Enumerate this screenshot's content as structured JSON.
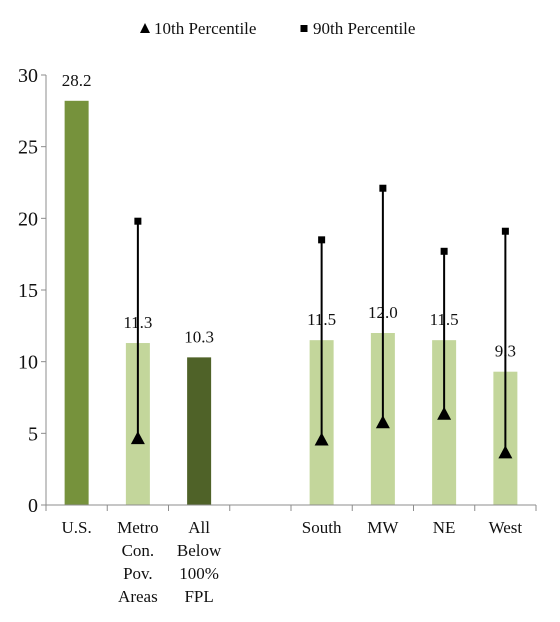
{
  "chart_data": {
    "type": "bar",
    "title": "",
    "xlabel": "",
    "ylabel": "",
    "ylim": [
      0,
      30
    ],
    "yticks": [
      0,
      5,
      10,
      15,
      20,
      25,
      30
    ],
    "grid": false,
    "legend_position": "top",
    "categories": [
      {
        "label_lines": [
          "U.S."
        ],
        "value": 28.2,
        "value_label": "28.2",
        "color": "#76923c",
        "p10": null,
        "p90": null
      },
      {
        "label_lines": [
          "Metro",
          "Con.",
          "Pov.",
          "Areas"
        ],
        "value": 11.3,
        "value_label": "11.3",
        "color": "#c3d69b",
        "p10": 4.6,
        "p90": 19.8
      },
      {
        "label_lines": [
          "All",
          "Below",
          "100%",
          "FPL"
        ],
        "value": 10.3,
        "value_label": "10.3",
        "color": "#4f6228",
        "p10": null,
        "p90": null
      },
      {
        "label_lines": [
          ""
        ],
        "value": null,
        "value_label": "",
        "color": "",
        "p10": null,
        "p90": null
      },
      {
        "label_lines": [
          "South"
        ],
        "value": 11.5,
        "value_label": "11.5",
        "color": "#c3d69b",
        "p10": 4.5,
        "p90": 18.5
      },
      {
        "label_lines": [
          "MW"
        ],
        "value": 12.0,
        "value_label": "12.0",
        "color": "#c3d69b",
        "p10": 5.7,
        "p90": 22.1
      },
      {
        "label_lines": [
          "NE"
        ],
        "value": 11.5,
        "value_label": "11.5",
        "color": "#c3d69b",
        "p10": 6.3,
        "p90": 17.7
      },
      {
        "label_lines": [
          "West"
        ],
        "value": 9.3,
        "value_label": "9.3",
        "color": "#c3d69b",
        "p10": 3.6,
        "p90": 19.1
      }
    ],
    "legend": [
      {
        "marker": "triangle",
        "label": "10th Percentile"
      },
      {
        "marker": "square",
        "label": "90th Percentile"
      }
    ]
  }
}
